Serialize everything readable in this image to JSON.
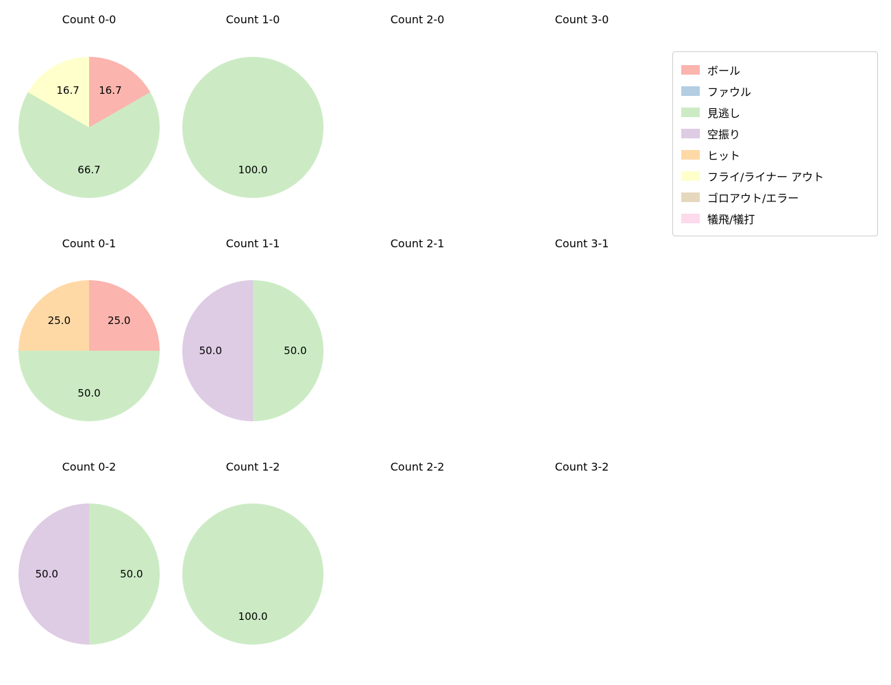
{
  "legend": {
    "position": "upper right",
    "items": [
      {
        "label": "ボール",
        "color": "#fbb4ae"
      },
      {
        "label": "ファウル",
        "color": "#b3cde3"
      },
      {
        "label": "見逃し",
        "color": "#ccebc5"
      },
      {
        "label": "空振り",
        "color": "#decbe4"
      },
      {
        "label": "ヒット",
        "color": "#fed9a6"
      },
      {
        "label": "フライ/ライナー アウト",
        "color": "#ffffcc"
      },
      {
        "label": "ゴロアウト/エラー",
        "color": "#e5d8bd"
      },
      {
        "label": "犠飛/犠打",
        "color": "#fddaec"
      }
    ]
  },
  "chart_data": [
    {
      "type": "pie",
      "title": "Count 0-0",
      "start_angle_deg": 90,
      "clockwise": true,
      "slices": [
        {
          "label": "ボール",
          "value": 16.7,
          "display": "16.7",
          "color": "#fbb4ae"
        },
        {
          "label": "見逃し",
          "value": 66.7,
          "display": "66.7",
          "color": "#ccebc5"
        },
        {
          "label": "フライ/ライナー アウト",
          "value": 16.7,
          "display": "16.7",
          "color": "#ffffcc"
        }
      ]
    },
    {
      "type": "pie",
      "title": "Count 1-0",
      "start_angle_deg": 90,
      "clockwise": true,
      "slices": [
        {
          "label": "見逃し",
          "value": 100.0,
          "display": "100.0",
          "color": "#ccebc5"
        }
      ]
    },
    {
      "type": "pie",
      "title": "Count 2-0",
      "start_angle_deg": 90,
      "clockwise": true,
      "slices": []
    },
    {
      "type": "pie",
      "title": "Count 3-0",
      "start_angle_deg": 90,
      "clockwise": true,
      "slices": []
    },
    {
      "type": "pie",
      "title": "Count 0-1",
      "start_angle_deg": 90,
      "clockwise": true,
      "slices": [
        {
          "label": "ボール",
          "value": 25.0,
          "display": "25.0",
          "color": "#fbb4ae"
        },
        {
          "label": "見逃し",
          "value": 50.0,
          "display": "50.0",
          "color": "#ccebc5"
        },
        {
          "label": "ヒット",
          "value": 25.0,
          "display": "25.0",
          "color": "#fed9a6"
        }
      ]
    },
    {
      "type": "pie",
      "title": "Count 1-1",
      "start_angle_deg": 90,
      "clockwise": true,
      "slices": [
        {
          "label": "見逃し",
          "value": 50.0,
          "display": "50.0",
          "color": "#ccebc5"
        },
        {
          "label": "空振り",
          "value": 50.0,
          "display": "50.0",
          "color": "#decbe4"
        }
      ]
    },
    {
      "type": "pie",
      "title": "Count 2-1",
      "start_angle_deg": 90,
      "clockwise": true,
      "slices": []
    },
    {
      "type": "pie",
      "title": "Count 3-1",
      "start_angle_deg": 90,
      "clockwise": true,
      "slices": []
    },
    {
      "type": "pie",
      "title": "Count 0-2",
      "start_angle_deg": 90,
      "clockwise": true,
      "slices": [
        {
          "label": "見逃し",
          "value": 50.0,
          "display": "50.0",
          "color": "#ccebc5"
        },
        {
          "label": "空振り",
          "value": 50.0,
          "display": "50.0",
          "color": "#decbe4"
        }
      ]
    },
    {
      "type": "pie",
      "title": "Count 1-2",
      "start_angle_deg": 90,
      "clockwise": true,
      "slices": [
        {
          "label": "見逃し",
          "value": 100.0,
          "display": "100.0",
          "color": "#ccebc5"
        }
      ]
    },
    {
      "type": "pie",
      "title": "Count 2-2",
      "start_angle_deg": 90,
      "clockwise": true,
      "slices": []
    },
    {
      "type": "pie",
      "title": "Count 3-2",
      "start_angle_deg": 90,
      "clockwise": true,
      "slices": []
    }
  ]
}
